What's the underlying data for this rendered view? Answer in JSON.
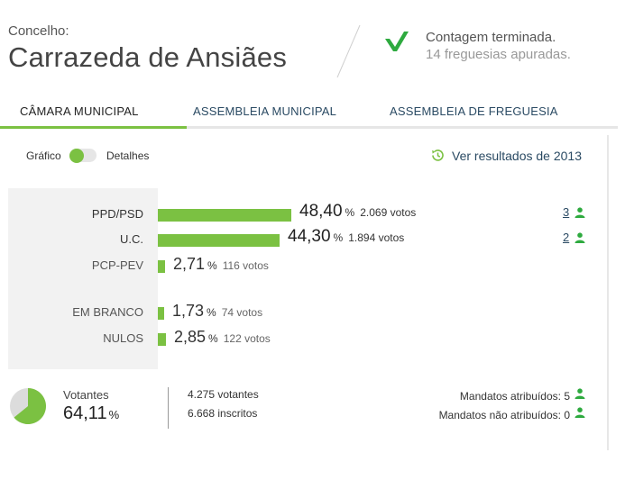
{
  "header": {
    "concelho_label": "Concelho:",
    "concelho_name": "Carrazeda de Ansiães",
    "status_main": "Contagem terminada.",
    "status_sub": "14 freguesias apuradas."
  },
  "tabs": [
    {
      "label": "CÂMARA MUNICIPAL",
      "active": true
    },
    {
      "label": "ASSEMBLEIA MUNICIPAL",
      "active": false
    },
    {
      "label": "ASSEMBLEIA DE FREGUESIA",
      "active": false
    }
  ],
  "toggle": {
    "left_label": "Gráfico",
    "right_label": "Detalhes"
  },
  "previous_results": {
    "label": "Ver resultados de 2013",
    "icon": "history-clock-icon"
  },
  "results": [
    {
      "name": "PPD/PSD",
      "percent": "48,40",
      "pct_sign": "%",
      "votes": "2.069 votos",
      "seats": "3",
      "share": 48.4
    },
    {
      "name": "U.C.",
      "percent": "44,30",
      "pct_sign": "%",
      "votes": "1.894 votos",
      "seats": "2",
      "share": 44.3
    },
    {
      "name": "PCP-PEV",
      "percent": "2,71",
      "pct_sign": "%",
      "votes": "116 votos",
      "seats": "",
      "share": 2.71
    }
  ],
  "other_votes": [
    {
      "name": "EM BRANCO",
      "percent": "1,73",
      "pct_sign": "%",
      "votes": "74 votos",
      "share": 1.73
    },
    {
      "name": "NULOS",
      "percent": "2,85",
      "pct_sign": "%",
      "votes": "122 votos",
      "share": 2.85
    }
  ],
  "turnout": {
    "label": "Votantes",
    "value": "64,11",
    "pct_sign": "%",
    "share": 64.11,
    "votantes": "4.275 votantes",
    "inscritos": "6.668 inscritos"
  },
  "mandates": {
    "attributed": "Mandatos atribuídos: 5",
    "not_attributed": "Mandatos não atribuídos: 0"
  },
  "colors": {
    "accent": "#7bc142",
    "link": "#2a4a63",
    "pie_bg": "#dcdcdc"
  }
}
